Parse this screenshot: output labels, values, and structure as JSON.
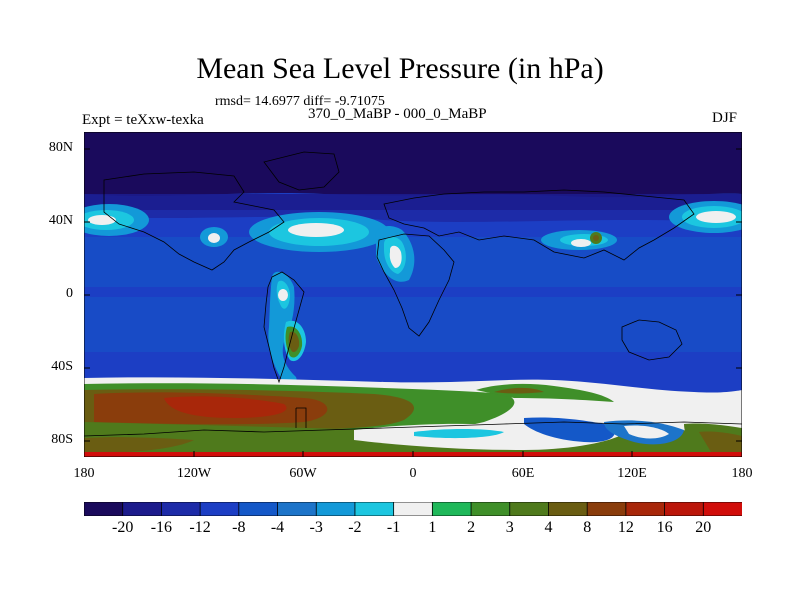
{
  "title": "Mean Sea Level Pressure (in hPa)",
  "stats_text": "rmsd= 14.6977 diff= -9.71075",
  "experiment_label": "Expt = teXxw-texka",
  "comparison_label": "370_0_MaBP - 000_0_MaBP",
  "season_label": "DJF",
  "y_ticks": [
    "80N",
    "40N",
    "0",
    "40S",
    "80S"
  ],
  "x_ticks": [
    "180",
    "120W",
    "60W",
    "0",
    "60E",
    "120E",
    "180"
  ],
  "colorbar": {
    "labels": [
      "-20",
      "-16",
      "-12",
      "-8",
      "-4",
      "-3",
      "-2",
      "-1",
      "1",
      "2",
      "3",
      "4",
      "8",
      "12",
      "16",
      "20"
    ],
    "colors": [
      "#1a0a5c",
      "#1c1b8c",
      "#1d2ba8",
      "#1c3ec4",
      "#1458c8",
      "#1d74c9",
      "#1399d8",
      "#1cc6e0",
      "#f0f0f0",
      "#1fb85a",
      "#3f8f29",
      "#4f7a1c",
      "#6a5d12",
      "#8a3d0c",
      "#a8270a",
      "#bb160a",
      "#d10d0a"
    ]
  }
}
